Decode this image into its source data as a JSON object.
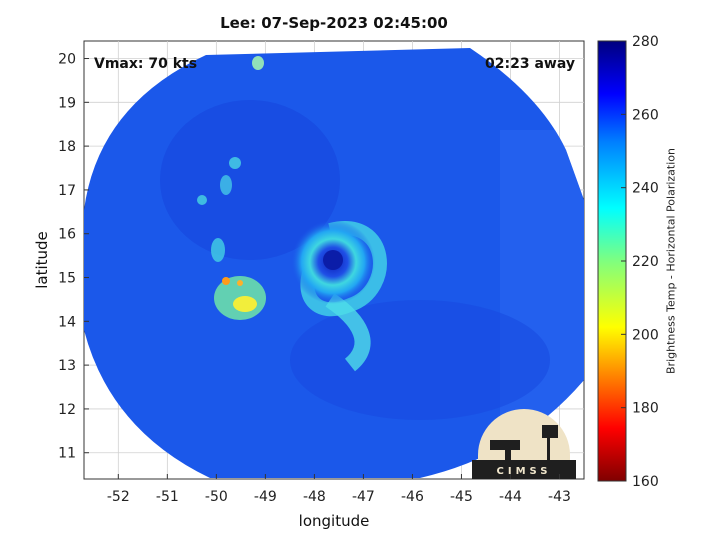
{
  "title": "Lee: 07-Sep-2023 02:45:00",
  "vmax_label": "Vmax: 70 kts",
  "away_label": "02:23 away",
  "logo_text": "CIMSS",
  "chart_data": {
    "type": "heatmap",
    "title": "Lee: 07-Sep-2023 02:45:00",
    "xlabel": "longitude",
    "ylabel": "latitude",
    "xlim": [
      -52.7,
      -42.5
    ],
    "ylim": [
      10.4,
      20.4
    ],
    "xticks": [
      -52,
      -51,
      -50,
      -49,
      -48,
      -47,
      -46,
      -45,
      -44,
      -43
    ],
    "yticks": [
      11,
      12,
      13,
      14,
      15,
      16,
      17,
      18,
      19,
      20
    ],
    "grid": true,
    "storm_center": {
      "lon": -47.4,
      "lat": 15.4
    },
    "colorbar": {
      "label": "Brightness Temp - Horizontal Polarization",
      "min": 160,
      "max": 280,
      "ticks": [
        160,
        180,
        200,
        220,
        240,
        260,
        280
      ]
    }
  }
}
